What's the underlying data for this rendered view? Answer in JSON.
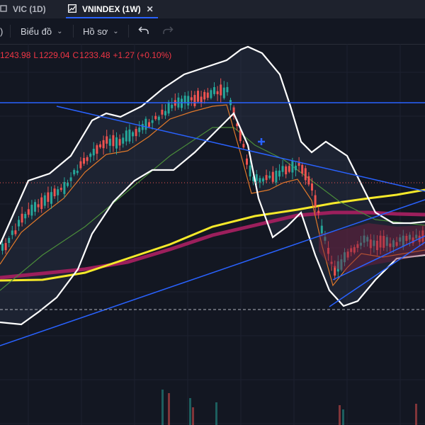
{
  "tabs": [
    {
      "label": "VIC (1D)",
      "active": false
    },
    {
      "label": "VNINDEX (1W)",
      "active": true
    }
  ],
  "toolbar": {
    "chart_menu_label": "Biểu đồ",
    "profile_menu_label": "Hồ sơ",
    "undo_icon": "undo-icon",
    "redo_icon": "redo-icon"
  },
  "ohlc": {
    "high": "1243.98",
    "low_label": "L",
    "low": "1229.04",
    "close_label": "C",
    "close": "1233.48",
    "change": "+1.27 (+0.10%)"
  },
  "colors": {
    "background": "#131722",
    "up": "#26a69a",
    "down": "#ef5350",
    "bollinger": "#ffffff",
    "trendline": "#2962ff",
    "ma_yellow": "#f5e92a",
    "ma_magenta": "#9c1f5c",
    "ma_orange": "#e0782a",
    "ma_green": "#4a8c3a"
  },
  "chart_data": {
    "type": "candlestick",
    "symbol": "VNINDEX",
    "interval": "1W",
    "last": {
      "high": 1243.98,
      "low": 1229.04,
      "close": 1233.48,
      "change": 1.27,
      "change_pct": 0.1
    }
  }
}
